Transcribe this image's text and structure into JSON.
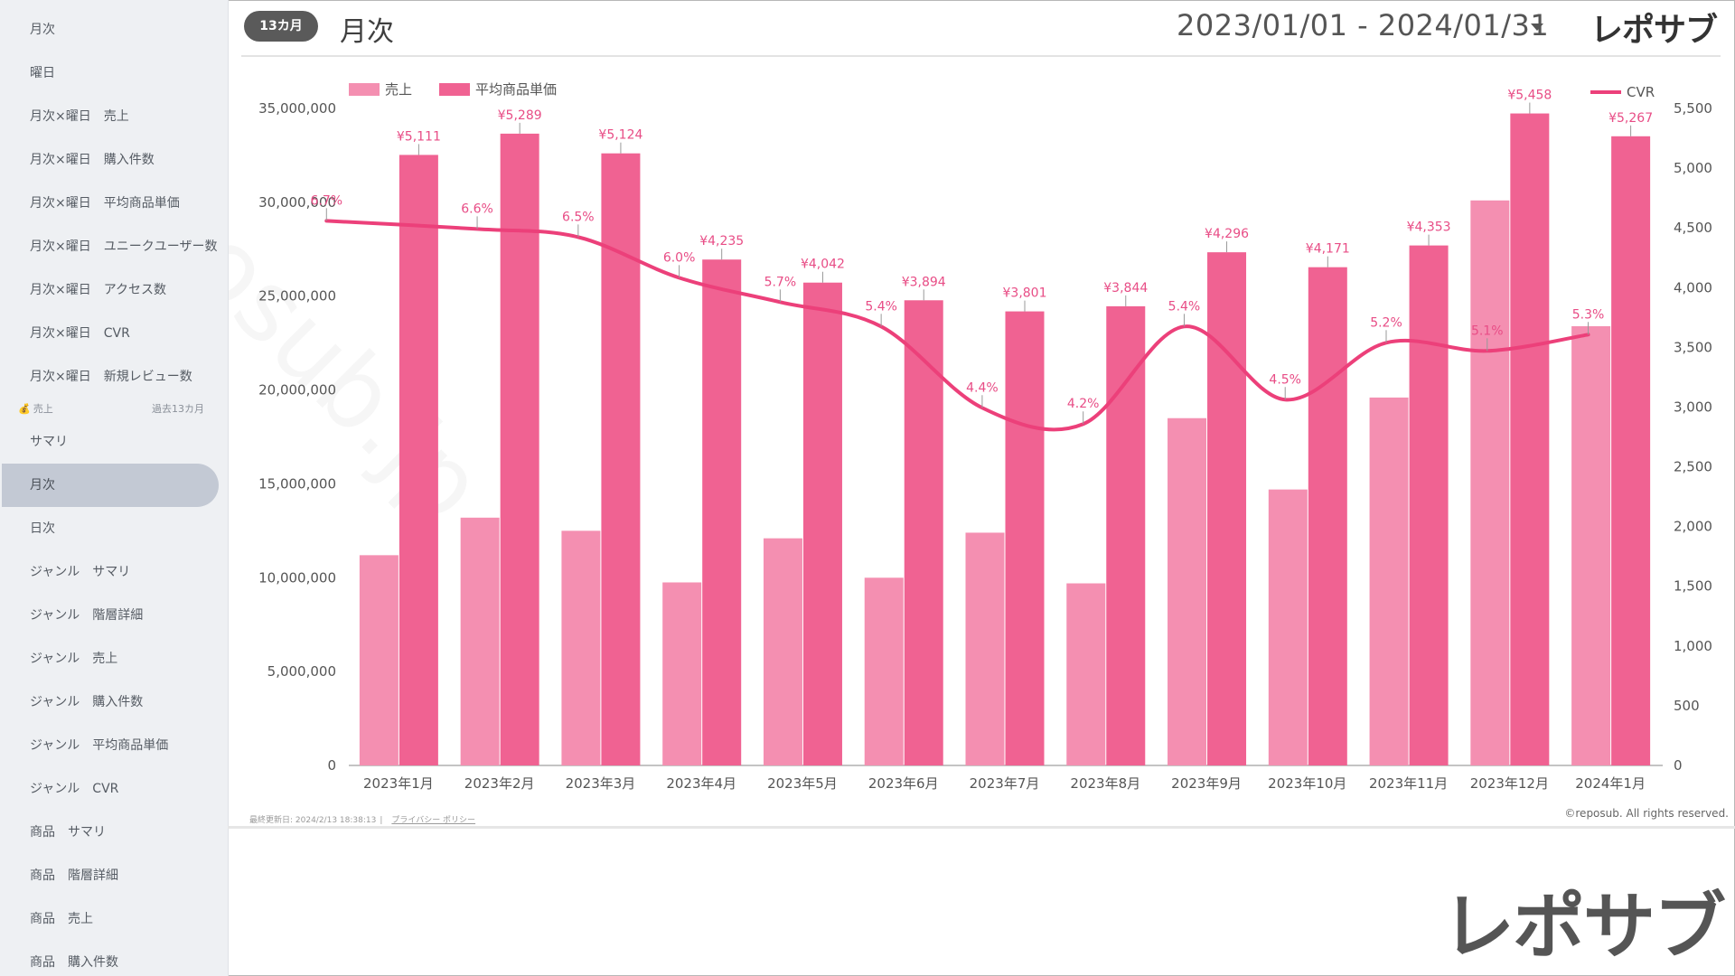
{
  "sidebar": {
    "items": [
      {
        "label": "月次"
      },
      {
        "label": "曜日"
      },
      {
        "label": "月次×曜日　売上"
      },
      {
        "label": "月次×曜日　購入件数"
      },
      {
        "label": "月次×曜日　平均商品単価"
      },
      {
        "label": "月次×曜日　ユニークユーザー数"
      },
      {
        "label": "月次×曜日　アクセス数"
      },
      {
        "label": "月次×曜日　CVR"
      },
      {
        "label": "月次×曜日　新規レビュー数"
      }
    ],
    "section": {
      "icon": "money-bag-icon",
      "label": "売上",
      "period": "過去13カ月"
    },
    "items2": [
      {
        "label": "サマリ"
      },
      {
        "label": "月次",
        "active": true
      },
      {
        "label": "日次"
      },
      {
        "label": "ジャンル　サマリ"
      },
      {
        "label": "ジャンル　階層詳細"
      },
      {
        "label": "ジャンル　売上"
      },
      {
        "label": "ジャンル　購入件数"
      },
      {
        "label": "ジャンル　平均商品単価"
      },
      {
        "label": "ジャンル　CVR"
      },
      {
        "label": "商品　サマリ"
      },
      {
        "label": "商品　階層詳細"
      },
      {
        "label": "商品　売上"
      },
      {
        "label": "商品　購入件数"
      }
    ]
  },
  "header": {
    "badge": "13カ月",
    "title": "月次",
    "date_range": "2023/01/01 - 2024/01/31",
    "logo": "レポサブ"
  },
  "footer": {
    "updated": "最終更新日: 2024/2/13 18:38:13",
    "privacy": "プライバシー ポリシー",
    "copyright": "©reposub. All rights reserved."
  },
  "logo_big": "レポサブ",
  "watermark": "reposub.jp",
  "chart_data": {
    "type": "bar",
    "categories": [
      "2023年1月",
      "2023年2月",
      "2023年3月",
      "2023年4月",
      "2023年5月",
      "2023年6月",
      "2023年7月",
      "2023年8月",
      "2023年9月",
      "2023年10月",
      "2023年11月",
      "2023年12月",
      "2024年1月"
    ],
    "y_left": {
      "min": 0,
      "max": 35000000,
      "ticks": [
        0,
        5000000,
        10000000,
        15000000,
        20000000,
        25000000,
        30000000,
        35000000
      ],
      "tick_labels": [
        "0",
        "5,000,000",
        "10,000,000",
        "15,000,000",
        "20,000,000",
        "25,000,000",
        "30,000,000",
        "35,000,000"
      ]
    },
    "y_right": {
      "min": 0,
      "max": 5500,
      "ticks": [
        0,
        500,
        1000,
        1500,
        2000,
        2500,
        3000,
        3500,
        4000,
        4500,
        5000,
        5500
      ],
      "tick_labels": [
        "0",
        "500",
        "1,000",
        "1,500",
        "2,000",
        "2,500",
        "3,000",
        "3,500",
        "4,000",
        "4,500",
        "5,000",
        "5,500"
      ]
    },
    "series": [
      {
        "name": "売上",
        "axis": "left",
        "color": "#f48fb1",
        "values": [
          11200000,
          13200000,
          12500000,
          9750000,
          12100000,
          10000000,
          12400000,
          9700000,
          18500000,
          14700000,
          19600000,
          30100000,
          23400000
        ]
      },
      {
        "name": "平均商品単価",
        "axis": "right",
        "color": "#f06292",
        "values": [
          5111,
          5289,
          5124,
          4235,
          4042,
          3894,
          3801,
          3844,
          4296,
          4171,
          4353,
          5458,
          5267
        ],
        "labels": [
          "¥5,111",
          "¥5,289",
          "¥5,124",
          "¥4,235",
          "¥4,042",
          "¥3,894",
          "¥3,801",
          "¥3,844",
          "¥4,296",
          "¥4,171",
          "¥4,353",
          "¥5,458",
          "¥5,267"
        ]
      },
      {
        "name": "CVR",
        "axis": "cvr",
        "type": "line",
        "color": "#ec407a",
        "values": [
          6.7,
          6.6,
          6.5,
          6.0,
          5.7,
          5.4,
          4.4,
          4.2,
          5.4,
          4.5,
          5.2,
          5.1,
          5.3
        ],
        "labels": [
          "6.7%",
          "6.6%",
          "6.5%",
          "6.0%",
          "5.7%",
          "5.4%",
          "4.4%",
          "4.2%",
          "5.4%",
          "4.5%",
          "5.2%",
          "5.1%",
          "5.3%"
        ]
      }
    ],
    "legend": {
      "left": [
        "売上",
        "平均商品単価"
      ],
      "right": [
        "CVR"
      ],
      "placement": "top"
    },
    "grid": false
  }
}
